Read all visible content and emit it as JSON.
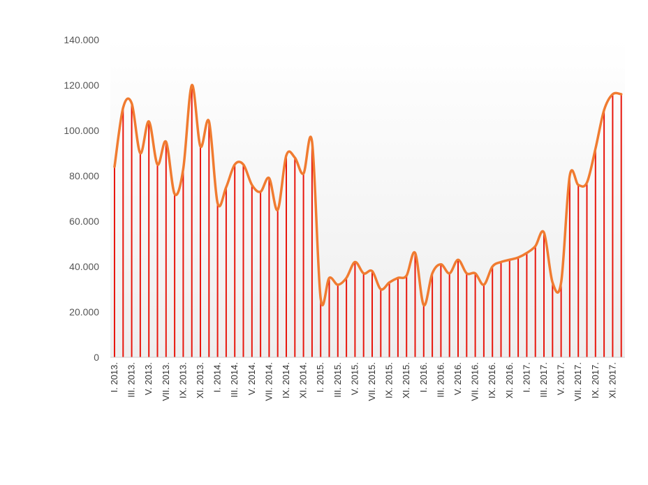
{
  "chart_data": {
    "type": "line",
    "title": "",
    "xlabel": "",
    "ylabel": "",
    "ylim": [
      0,
      140000
    ],
    "yticks": [
      0,
      20000,
      40000,
      60000,
      80000,
      100000,
      120000,
      140000
    ],
    "ytick_labels": [
      "0",
      "20.000",
      "40.000",
      "60.000",
      "80.000",
      "100.000",
      "120.000",
      "140.000"
    ],
    "x_tick_labels": [
      "I. 2013.",
      "III. 2013.",
      "V. 2013.",
      "VII. 2013.",
      "IX. 2013.",
      "XI. 2013.",
      "I. 2014.",
      "III. 2014.",
      "V. 2014.",
      "VII. 2014.",
      "IX. 2014.",
      "XI. 2014.",
      "I. 2015.",
      "III. 2015.",
      "V. 2015.",
      "VII. 2015.",
      "IX. 2015.",
      "XI. 2015.",
      "I. 2016.",
      "III. 2016.",
      "V. 2016.",
      "VII. 2016.",
      "IX. 2016.",
      "XI. 2016.",
      "I. 2017.",
      "III. 2017.",
      "V. 2017.",
      "VII. 2017.",
      "IX. 2017.",
      "XI. 2017."
    ],
    "grid": false,
    "legend": "none",
    "series": [
      {
        "values": [
          84000,
          110000,
          112000,
          90000,
          104000,
          85000,
          95000,
          72000,
          83000,
          120000,
          93000,
          104000,
          68000,
          75000,
          85000,
          85000,
          76000,
          73000,
          79000,
          65000,
          89000,
          88000,
          81000,
          95000,
          26000,
          35000,
          32000,
          35000,
          42000,
          37000,
          38000,
          30000,
          33000,
          35000,
          36000,
          46000,
          23000,
          37000,
          41000,
          37000,
          43000,
          37000,
          37000,
          32000,
          40000,
          42000,
          43000,
          44000,
          46000,
          49000,
          55000,
          33000,
          33000,
          80000,
          76000,
          77000,
          92000,
          109000,
          116000,
          116000
        ],
        "line_color": "#f07b30",
        "stem_color": "#e8160c"
      }
    ]
  }
}
